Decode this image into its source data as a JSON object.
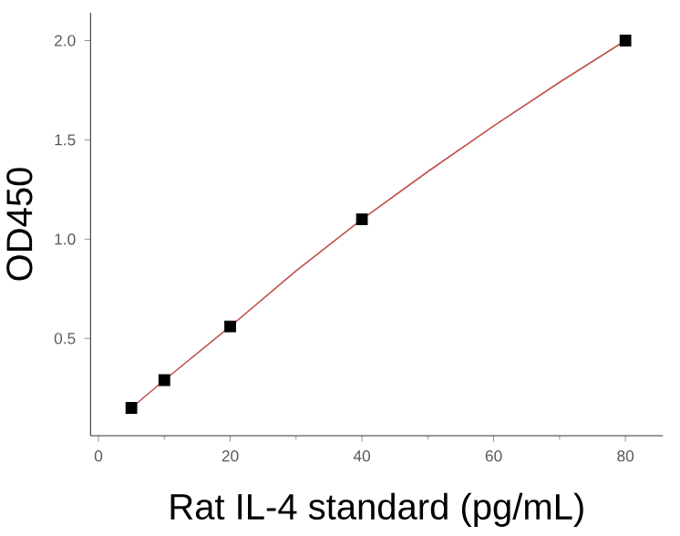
{
  "chart_data": {
    "type": "scatter",
    "xlabel": "Rat IL-4 standard (pg/mL)",
    "ylabel": "OD450",
    "xlim": [
      -1.2,
      85.7
    ],
    "ylim": [
      0.01,
      2.14
    ],
    "xticks": [
      0,
      20,
      40,
      60,
      80
    ],
    "yticks": [
      0.5,
      {
        "value": 1,
        "label": "1.0"
      },
      1.5,
      {
        "value": 2,
        "label": "2.0"
      }
    ],
    "grid": false,
    "series": [
      {
        "color": "#000000",
        "marker": "square",
        "x": [
          5,
          10,
          20,
          40,
          80
        ],
        "values": [
          0.15,
          0.29,
          0.56,
          1.1,
          2.0
        ]
      },
      {
        "type": "line",
        "color": "#c0504d",
        "marker": "none",
        "line_style": "solid",
        "x": [
          5,
          10,
          20,
          30,
          40,
          50,
          60,
          70,
          80
        ],
        "values": [
          0.15,
          0.29,
          0.56,
          0.84,
          1.1,
          1.34,
          1.57,
          1.79,
          2.0
        ]
      }
    ]
  }
}
